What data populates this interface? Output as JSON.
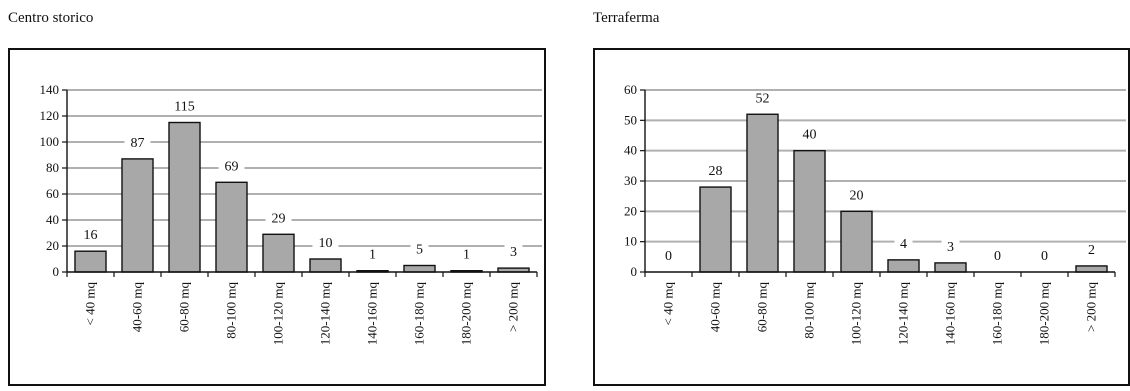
{
  "chart_data": [
    {
      "type": "bar",
      "title": "Centro storico",
      "categories": [
        "< 40 mq",
        "40-60 mq",
        "60-80 mq",
        "80-100 mq",
        "100-120 mq",
        "120-140 mq",
        "140-160 mq",
        "160-180 mq",
        "180-200 mq",
        "> 200 mq"
      ],
      "values": [
        16,
        87,
        115,
        69,
        29,
        10,
        1,
        5,
        1,
        3
      ],
      "yticks": [
        "0",
        "20",
        "40",
        "60",
        "80",
        "100",
        "120",
        "140"
      ],
      "ylim": [
        0,
        140
      ],
      "xlabel": "",
      "ylabel": "",
      "grid": true,
      "bar_color": "#a8a8a8",
      "grid_color": "#b0b0b0"
    },
    {
      "type": "bar",
      "title": "Terraferma",
      "categories": [
        "< 40 mq",
        "40-60 mq",
        "60-80 mq",
        "80-100 mq",
        "100-120 mq",
        "120-140 mq",
        "140-160 mq",
        "160-180 mq",
        "180-200 mq",
        "> 200 mq"
      ],
      "values": [
        0,
        28,
        52,
        40,
        20,
        4,
        3,
        0,
        0,
        2
      ],
      "yticks": [
        "0",
        "10",
        "20",
        "30",
        "40",
        "50",
        "60"
      ],
      "ylim": [
        0,
        60
      ],
      "xlabel": "",
      "ylabel": "",
      "grid": true,
      "bar_color": "#a8a8a8",
      "grid_color": "#b0b0b0"
    }
  ]
}
